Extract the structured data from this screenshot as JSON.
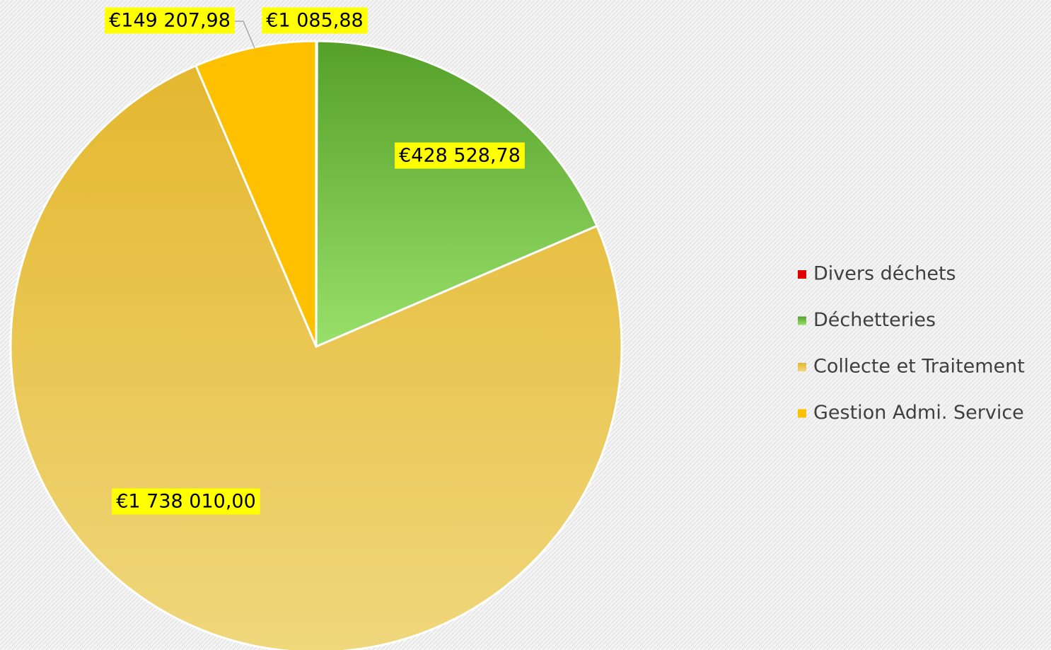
{
  "chart_data": {
    "type": "pie",
    "categories": [
      "Divers déchets",
      "Déchetteries",
      "Collecte et Traitement",
      "Gestion Admi. Service"
    ],
    "values": [
      1085.88,
      428528.78,
      1738010.0,
      149207.98
    ],
    "value_labels": [
      "€1 085,88",
      "€428 528,78",
      "€1 738 010,00",
      "€149 207,98"
    ],
    "colors": [
      "#e00000",
      "#6cbb3c",
      "#ebc95a",
      "#ffc000"
    ],
    "legend": "right"
  }
}
